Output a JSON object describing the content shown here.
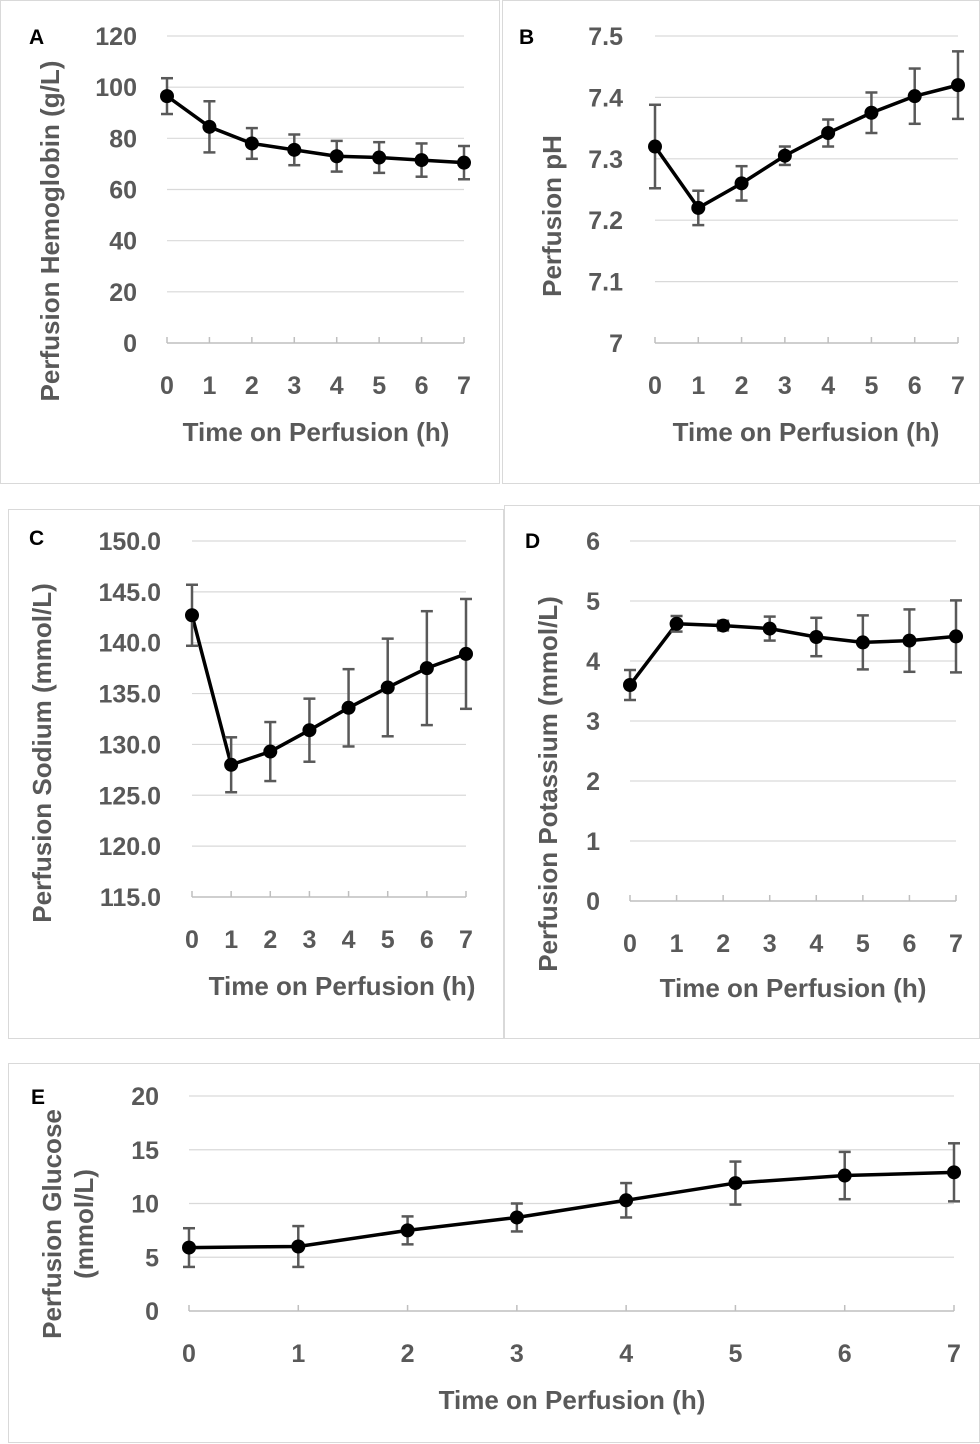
{
  "chart_data": [
    {
      "type": "line",
      "panel_label": "A",
      "xlabel": "Time on Perfusion (h)",
      "ylabel": "Perfusion Hemoglobin (g/L)",
      "x": [
        0,
        1,
        2,
        3,
        4,
        5,
        6,
        7
      ],
      "ylim": [
        0,
        120
      ],
      "yticks": [
        "0",
        "20",
        "40",
        "60",
        "80",
        "100",
        "120"
      ],
      "xticks": [
        "0",
        "1",
        "2",
        "3",
        "4",
        "5",
        "6",
        "7"
      ],
      "series": [
        {
          "values": [
            96.5,
            84.5,
            78,
            75.5,
            73,
            72.5,
            71.5,
            70.5
          ],
          "errors": [
            7,
            10,
            6,
            6,
            6,
            6,
            6.5,
            6.5
          ]
        }
      ],
      "grid": true,
      "legend": "none"
    },
    {
      "type": "line",
      "panel_label": "B",
      "xlabel": "Time on Perfusion (h)",
      "ylabel": "Perfusion pH",
      "x": [
        0,
        1,
        2,
        3,
        4,
        5,
        6,
        7
      ],
      "ylim": [
        7,
        7.5
      ],
      "yticks": [
        "7",
        "7.1",
        "7.2",
        "7.3",
        "7.4",
        "7.5"
      ],
      "xticks": [
        "0",
        "1",
        "2",
        "3",
        "4",
        "5",
        "6",
        "7"
      ],
      "series": [
        {
          "values": [
            7.32,
            7.22,
            7.26,
            7.305,
            7.342,
            7.375,
            7.402,
            7.42
          ],
          "errors": [
            0.068,
            0.028,
            0.028,
            0.015,
            0.022,
            0.033,
            0.045,
            0.055
          ]
        }
      ],
      "grid": true,
      "legend": "none"
    },
    {
      "type": "line",
      "panel_label": "C",
      "xlabel": "Time on Perfusion (h)",
      "ylabel": "Perfusion Sodium (mmol/L)",
      "x": [
        0,
        1,
        2,
        3,
        4,
        5,
        6,
        7
      ],
      "ylim": [
        115,
        150
      ],
      "yticks": [
        "115.0",
        "120.0",
        "125.0",
        "130.0",
        "135.0",
        "140.0",
        "145.0",
        "150.0"
      ],
      "xticks": [
        "0",
        "1",
        "2",
        "3",
        "4",
        "5",
        "6",
        "7"
      ],
      "series": [
        {
          "values": [
            142.7,
            128.0,
            129.3,
            131.4,
            133.6,
            135.6,
            137.5,
            138.9
          ],
          "errors": [
            3.0,
            2.7,
            2.9,
            3.1,
            3.8,
            4.8,
            5.6,
            5.4
          ]
        }
      ],
      "grid": true,
      "legend": "none"
    },
    {
      "type": "line",
      "panel_label": "D",
      "xlabel": "Time on Perfusion (h)",
      "ylabel": "Perfusion Potassium (mmol/L)",
      "x": [
        0,
        1,
        2,
        3,
        4,
        5,
        6,
        7
      ],
      "ylim": [
        0,
        6
      ],
      "yticks": [
        "0",
        "1",
        "2",
        "3",
        "4",
        "5",
        "6"
      ],
      "xticks": [
        "0",
        "1",
        "2",
        "3",
        "4",
        "5",
        "6",
        "7"
      ],
      "series": [
        {
          "values": [
            3.6,
            4.62,
            4.59,
            4.54,
            4.4,
            4.31,
            4.34,
            4.41
          ],
          "errors": [
            0.25,
            0.13,
            0.08,
            0.2,
            0.32,
            0.45,
            0.52,
            0.6
          ]
        }
      ],
      "grid": true,
      "legend": "none"
    },
    {
      "type": "line",
      "panel_label": "E",
      "xlabel": "Time on Perfusion (h)",
      "ylabel": "Perfusion Glucose (mmol/L)",
      "ylabel_lines": [
        "Perfusion Glucose",
        "(mmol/L)"
      ],
      "x": [
        0,
        1,
        2,
        3,
        4,
        5,
        6,
        7
      ],
      "ylim": [
        0,
        20
      ],
      "yticks": [
        "0",
        "5",
        "10",
        "15",
        "20"
      ],
      "xticks": [
        "0",
        "1",
        "2",
        "3",
        "4",
        "5",
        "6",
        "7"
      ],
      "series": [
        {
          "values": [
            5.9,
            6.0,
            7.5,
            8.7,
            10.3,
            11.9,
            12.6,
            12.9
          ],
          "errors": [
            1.8,
            1.9,
            1.3,
            1.3,
            1.6,
            2.0,
            2.2,
            2.7
          ]
        }
      ],
      "grid": true,
      "legend": "none"
    }
  ]
}
